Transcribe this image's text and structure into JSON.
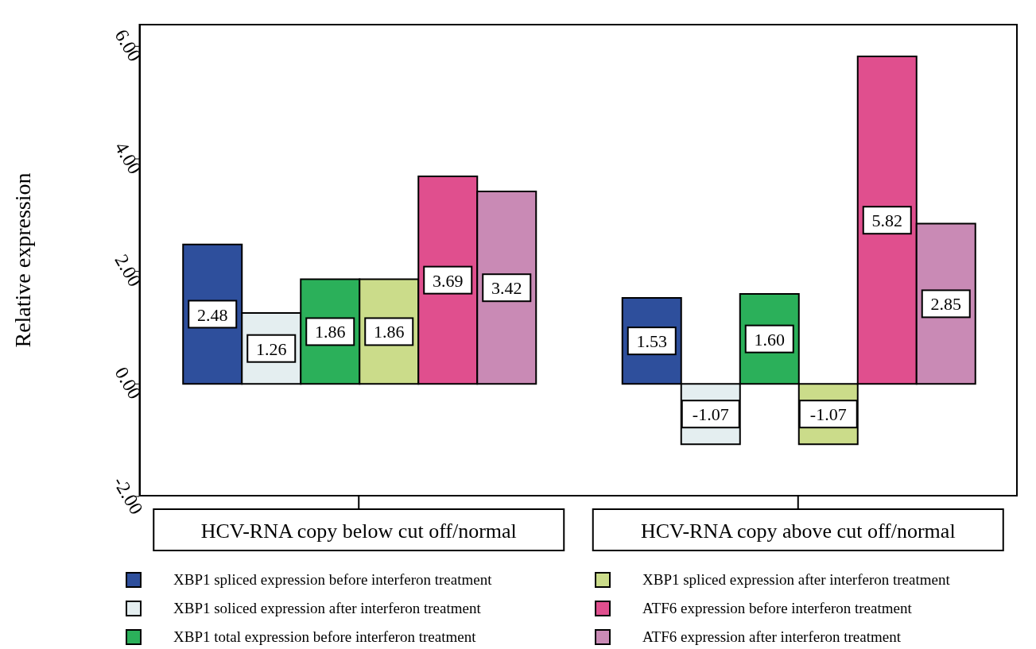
{
  "chart_data": {
    "type": "bar",
    "ylabel": "Relative expression",
    "categories": [
      "HCV-RNA copy below cut off/normal",
      "HCV-RNA copy above cut off/normal"
    ],
    "ylim": [
      -2,
      6.4
    ],
    "yticks": [
      {
        "value": -2,
        "label": "-2.00"
      },
      {
        "value": 0,
        "label": "0.00"
      },
      {
        "value": 2,
        "label": "2.00"
      },
      {
        "value": 4,
        "label": "4.00"
      },
      {
        "value": 6,
        "label": "6.00"
      }
    ],
    "grid": false,
    "legend": "bottom",
    "series": [
      {
        "name": "XBP1 spliced expression before interferon treatment",
        "color": "#2e4f9c",
        "values": [
          2.48,
          1.53
        ],
        "value_labels": [
          "2.48",
          "1.53"
        ]
      },
      {
        "name": "XBP1 soliced expression after interferon treatment",
        "color": "#e4eef0",
        "values": [
          1.26,
          -1.07
        ],
        "value_labels": [
          "1.26",
          "-1.07"
        ]
      },
      {
        "name": "XBP1 total expression before interferon treatment",
        "color": "#2bb05a",
        "values": [
          1.86,
          1.6
        ],
        "value_labels": [
          "1.86",
          "1.60"
        ]
      },
      {
        "name": "XBP1 spliced expression after interferon treatment",
        "color": "#cbdc8a",
        "values": [
          1.86,
          -1.07
        ],
        "value_labels": [
          "1.86",
          "-1.07"
        ]
      },
      {
        "name": "ATF6 expression before interferon treatment",
        "color": "#e04f8e",
        "values": [
          3.69,
          5.82
        ],
        "value_labels": [
          "3.69",
          "5.82"
        ]
      },
      {
        "name": "ATF6 expression after interferon treatment",
        "color": "#c98ab5",
        "values": [
          3.42,
          2.85
        ],
        "value_labels": [
          "3.42",
          "2.85"
        ]
      }
    ]
  }
}
